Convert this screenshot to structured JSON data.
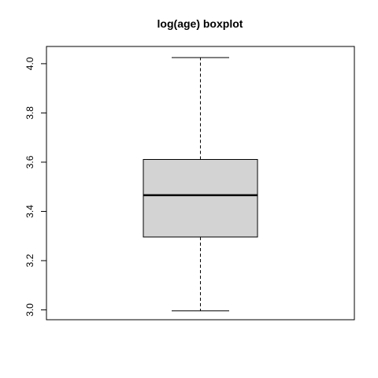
{
  "chart_data": {
    "type": "boxplot",
    "title": "log(age) boxplot",
    "xlabel": "",
    "ylabel": "",
    "ylim": [
      2.96,
      4.07
    ],
    "yticks": [
      "3.0",
      "3.2",
      "3.4",
      "3.6",
      "3.8",
      "4.0"
    ],
    "ytick_values": [
      3.0,
      3.2,
      3.4,
      3.6,
      3.8,
      4.0
    ],
    "box": {
      "whisker_low": 2.996,
      "q1": 3.296,
      "median": 3.466,
      "q3": 3.611,
      "whisker_high": 4.025
    },
    "box_fill": "#d3d3d3",
    "grid": false
  }
}
